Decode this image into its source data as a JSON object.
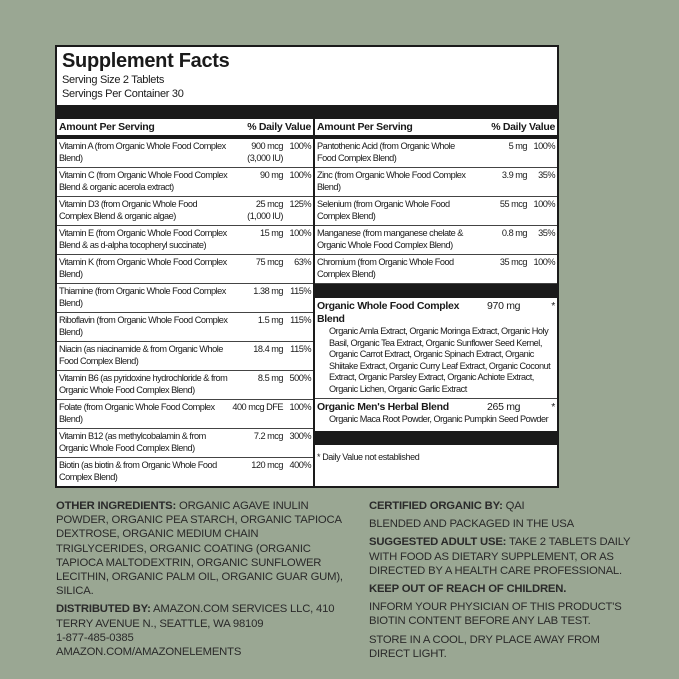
{
  "title": "Supplement Facts",
  "serving_size": "Serving Size 2 Tablets",
  "servings_per_container": "Servings Per Container 30",
  "header": {
    "amount": "Amount Per Serving",
    "dv": "% Daily Value"
  },
  "left_rows": [
    {
      "name": "Vitamin A (from Organic Whole Food Complex Blend)",
      "amount": "900 mcg (3,000 IU)",
      "dv": "100%"
    },
    {
      "name": "Vitamin C (from Organic Whole Food Complex Blend & organic acerola extract)",
      "amount": "90 mg",
      "dv": "100%"
    },
    {
      "name": "Vitamin D3 (from Organic Whole Food Complex Blend & organic algae)",
      "amount": "25 mcg (1,000 IU)",
      "dv": "125%"
    },
    {
      "name": "Vitamin E (from Organic Whole Food Complex Blend & as d-alpha tocopheryl succinate)",
      "amount": "15 mg",
      "dv": "100%"
    },
    {
      "name": "Vitamin K (from Organic Whole Food Complex Blend)",
      "amount": "75 mcg",
      "dv": "63%"
    },
    {
      "name": "Thiamine (from Organic Whole Food Complex Blend)",
      "amount": "1.38 mg",
      "dv": "115%"
    },
    {
      "name": "Riboflavin (from Organic Whole Food Complex Blend)",
      "amount": "1.5 mg",
      "dv": "115%"
    },
    {
      "name": "Niacin (as niacinamide & from Organic Whole Food Complex Blend)",
      "amount": "18.4 mg",
      "dv": "115%"
    },
    {
      "name": "Vitamin B6 (as pyridoxine hydrochloride & from Organic Whole Food Complex Blend)",
      "amount": "8.5 mg",
      "dv": "500%"
    },
    {
      "name": "Folate (from Organic Whole Food Complex Blend)",
      "amount": "400 mcg DFE",
      "dv": "100%"
    },
    {
      "name": "Vitamin B12 (as methylcobalamin & from Organic Whole Food Complex Blend)",
      "amount": "7.2 mcg",
      "dv": "300%"
    },
    {
      "name": "Biotin (as biotin & from Organic Whole Food Complex Blend)",
      "amount": "120 mcg",
      "dv": "400%"
    }
  ],
  "right_rows": [
    {
      "name": "Pantothenic Acid (from Organic Whole Food Complex Blend)",
      "amount": "5 mg",
      "dv": "100%"
    },
    {
      "name": "Zinc (from Organic Whole Food Complex Blend)",
      "amount": "3.9 mg",
      "dv": "35%"
    },
    {
      "name": "Selenium (from Organic Whole Food Complex Blend)",
      "amount": "55 mcg",
      "dv": "100%"
    },
    {
      "name": "Manganese (from manganese chelate & Organic Whole Food Complex Blend)",
      "amount": "0.8 mg",
      "dv": "35%"
    },
    {
      "name": "Chromium (from Organic Whole Food Complex Blend)",
      "amount": "35 mcg",
      "dv": "100%"
    }
  ],
  "blends": [
    {
      "name": "Organic Whole Food Complex Blend",
      "amount": "970 mg",
      "dv": "*",
      "ingredients": "Organic Amla Extract, Organic Moringa Extract, Organic Holy Basil, Organic Tea Extract, Organic Sunflower Seed Kernel, Organic Carrot Extract, Organic Spinach Extract, Organic Shiitake Extract, Organic Curry Leaf Extract, Organic Coconut Extract, Organic Parsley Extract, Organic Achiote Extract, Organic Lichen, Organic Garlic Extract"
    },
    {
      "name": "Organic Men's Herbal Blend",
      "amount": "265 mg",
      "dv": "*",
      "ingredients": "Organic Maca Root Powder, Organic Pumpkin Seed Powder"
    }
  ],
  "footnote": "* Daily Value not established",
  "bottom": {
    "other_label": "OTHER INGREDIENTS:",
    "other_text": " ORGANIC AGAVE INULIN POWDER, ORGANIC PEA STARCH, ORGANIC TAPIOCA DEXTROSE, ORGANIC MEDIUM CHAIN TRIGLYCERIDES, ORGANIC COATING (ORGANIC TAPIOCA MALTODEXTRIN, ORGANIC SUNFLOWER LECITHIN, ORGANIC PALM OIL, ORGANIC GUAR GUM), SILICA.",
    "dist_label": "DISTRIBUTED BY:",
    "dist_text": " AMAZON.COM SERVICES LLC, 410 TERRY AVENUE N., SEATTLE, WA 98109",
    "phone": "1-877-485-0385",
    "website": "AMAZON.COM/AMAZONELEMENTS",
    "cert_label": "CERTIFIED ORGANIC BY:",
    "cert_text": " QAI",
    "blended": "BLENDED AND PACKAGED IN THE USA",
    "use_label": "SUGGESTED ADULT USE:",
    "use_text": " TAKE 2 TABLETS DAILY WITH FOOD AS DIETARY SUPPLEMENT, OR AS DIRECTED BY A HEALTH CARE PROFESSIONAL.",
    "keep_out": "KEEP OUT OF REACH OF CHILDREN.",
    "inform": "INFORM YOUR PHYSICIAN OF THIS PRODUCT'S BIOTIN CONTENT BEFORE ANY LAB TEST.",
    "store": "STORE IN A COOL, DRY PLACE AWAY FROM DIRECT LIGHT."
  },
  "colors": {
    "background": "#9aa793",
    "panel": "#ffffff",
    "ink": "#1a1a1a"
  }
}
